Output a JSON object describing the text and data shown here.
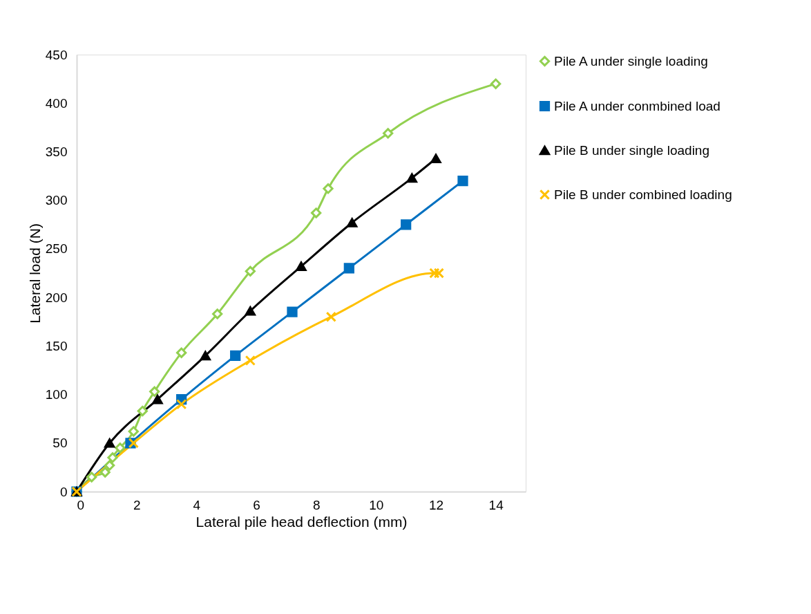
{
  "chart_data": {
    "type": "line",
    "xlabel": "Lateral pile head deflection (mm)",
    "ylabel": "Lateral load (N)",
    "xlim": [
      0,
      15
    ],
    "xticks": [
      0,
      2,
      4,
      6,
      8,
      10,
      12,
      14
    ],
    "ylim": [
      0,
      450
    ],
    "yticks": [
      0,
      50,
      100,
      150,
      200,
      250,
      300,
      350,
      400,
      450
    ],
    "grid": false,
    "legend": "right",
    "series": [
      {
        "name": "Pile A under single loading",
        "color": "#92d050",
        "marker": "diamond",
        "x": [
          0,
          0.5,
          0.95,
          1.1,
          1.2,
          1.45,
          1.9,
          2.2,
          2.6,
          3.5,
          4.7,
          5.8,
          8.0,
          8.4,
          10.4,
          14
        ],
        "values": [
          0,
          15,
          20,
          27,
          35,
          45,
          62,
          83,
          103,
          143,
          183,
          227,
          287,
          312,
          369,
          420
        ]
      },
      {
        "name": "Pile A under conmbined load",
        "color": "#0070c0",
        "marker": "square",
        "x": [
          0,
          1.8,
          3.5,
          5.3,
          7.2,
          9.1,
          11,
          12.9
        ],
        "values": [
          0,
          50,
          95,
          140,
          185,
          230,
          275,
          320
        ]
      },
      {
        "name": "Pile B under single loading",
        "color": "#000000",
        "marker": "triangle",
        "x": [
          0,
          1.1,
          2.7,
          4.3,
          5.8,
          7.5,
          9.2,
          11.2,
          12
        ],
        "values": [
          0,
          50,
          95,
          140,
          186,
          232,
          277,
          323,
          343
        ]
      },
      {
        "name": "Pile B under combined loading",
        "color": "#ffc000",
        "marker": "cross",
        "x": [
          0,
          1.9,
          3.5,
          5.8,
          8.5,
          11.95,
          12.1
        ],
        "values": [
          0,
          50,
          90,
          135,
          180,
          225,
          225
        ]
      }
    ]
  }
}
